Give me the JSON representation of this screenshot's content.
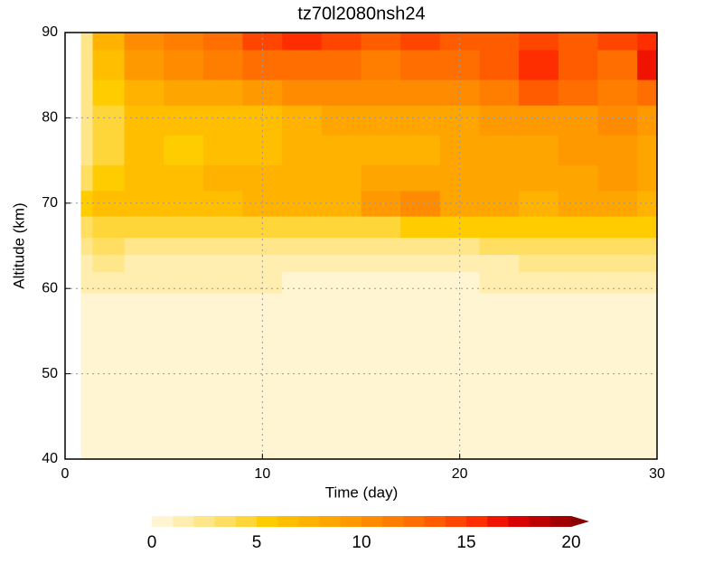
{
  "chart_data": {
    "type": "contour",
    "title": "tz70l2080nsh24",
    "xlabel": "Time (day)",
    "ylabel": "Altitude (km)",
    "xlim": [
      0,
      30
    ],
    "xticks": [
      0,
      10,
      20,
      30
    ],
    "ylim": [
      40,
      90
    ],
    "yticks": [
      40,
      50,
      60,
      70,
      80,
      90
    ],
    "grid": true,
    "x": [
      0.8,
      2,
      4,
      6,
      8,
      10,
      12,
      14,
      16,
      18,
      20,
      22,
      24,
      26,
      28,
      30
    ],
    "y": [
      40,
      50,
      58,
      61,
      63,
      65,
      67,
      70,
      73,
      76,
      80,
      83,
      86,
      90
    ],
    "z": [
      [
        0.4,
        0.5,
        0.5,
        0.5,
        0.5,
        0.5,
        0.5,
        0.5,
        0.5,
        0.5,
        0.5,
        0.5,
        0.5,
        0.5,
        0.5,
        0.5
      ],
      [
        0.4,
        0.5,
        0.5,
        0.5,
        0.5,
        0.5,
        0.5,
        0.5,
        0.5,
        0.5,
        0.5,
        0.5,
        0.5,
        0.5,
        0.5,
        0.5
      ],
      [
        0.4,
        0.5,
        0.5,
        0.5,
        0.5,
        0.5,
        0.5,
        0.5,
        0.5,
        0.5,
        0.5,
        0.5,
        0.5,
        0.5,
        0.5,
        0.5
      ],
      [
        1.2,
        1.5,
        1.5,
        1.5,
        1.5,
        1.5,
        0.8,
        0.8,
        0.8,
        0.8,
        0.8,
        1.3,
        1.5,
        1.5,
        1.5,
        1.5
      ],
      [
        1.8,
        2.2,
        1.8,
        1.8,
        1.8,
        1.8,
        1.5,
        1.5,
        1.5,
        1.5,
        1.8,
        1.8,
        2.2,
        2.2,
        2.2,
        2.2
      ],
      [
        2.5,
        3.2,
        2.5,
        2.8,
        2.5,
        2.5,
        2.5,
        2.8,
        2.5,
        2.8,
        2.8,
        3.2,
        3.2,
        3.2,
        3.5,
        3.2
      ],
      [
        3.5,
        4.5,
        4.2,
        4.5,
        4.2,
        4.5,
        4.5,
        4.8,
        4.5,
        5.2,
        5.2,
        5.5,
        5.2,
        5.5,
        5.5,
        5.2
      ],
      [
        5.5,
        6.5,
        6,
        6.5,
        6.5,
        7,
        7.5,
        7.8,
        9,
        10.5,
        8.5,
        8,
        7.5,
        8,
        8,
        7
      ],
      [
        3.5,
        5.5,
        6.5,
        6,
        7,
        7.5,
        7.5,
        7.5,
        8,
        8.5,
        8,
        8.5,
        8,
        8.5,
        9,
        8
      ],
      [
        2.5,
        4.5,
        6,
        5.5,
        6.5,
        6.5,
        7,
        7.5,
        7.5,
        7.5,
        8,
        8,
        8,
        9,
        9,
        8.5
      ],
      [
        2,
        4.5,
        6,
        6,
        6.5,
        6.5,
        7.5,
        8,
        8,
        8.5,
        8.5,
        9,
        9,
        9.5,
        10,
        9.5
      ],
      [
        2,
        5,
        7.5,
        8,
        8.5,
        9.5,
        10.5,
        10.5,
        10,
        10,
        10.5,
        11.5,
        13.5,
        12,
        11.5,
        12.5
      ],
      [
        2,
        6,
        9,
        10,
        11,
        12,
        12.5,
        12,
        11.5,
        12,
        12.5,
        13,
        15.5,
        13,
        12.5,
        16
      ],
      [
        2,
        7,
        10,
        11.5,
        12.5,
        14,
        15,
        14,
        13,
        14,
        13.5,
        13,
        14,
        13.5,
        14,
        15
      ]
    ],
    "levels": [
      0,
      1,
      2,
      3,
      4,
      5,
      6,
      7,
      8,
      9,
      10,
      11,
      12,
      13,
      14,
      15,
      16,
      17,
      18,
      19,
      20
    ],
    "colors": [
      "#fff5d2",
      "#ffeeb0",
      "#ffe68a",
      "#ffde62",
      "#ffd63a",
      "#ffcc00",
      "#ffbf00",
      "#ffb200",
      "#ffa500",
      "#ff9900",
      "#ff8c00",
      "#ff7e00",
      "#ff6e00",
      "#ff5c00",
      "#ff4600",
      "#ff2e00",
      "#f01400",
      "#d80000",
      "#bd0000",
      "#a30000",
      "#8b0000"
    ],
    "extend": "max",
    "cbar_ticks": [
      0,
      5,
      10,
      15,
      20
    ]
  }
}
